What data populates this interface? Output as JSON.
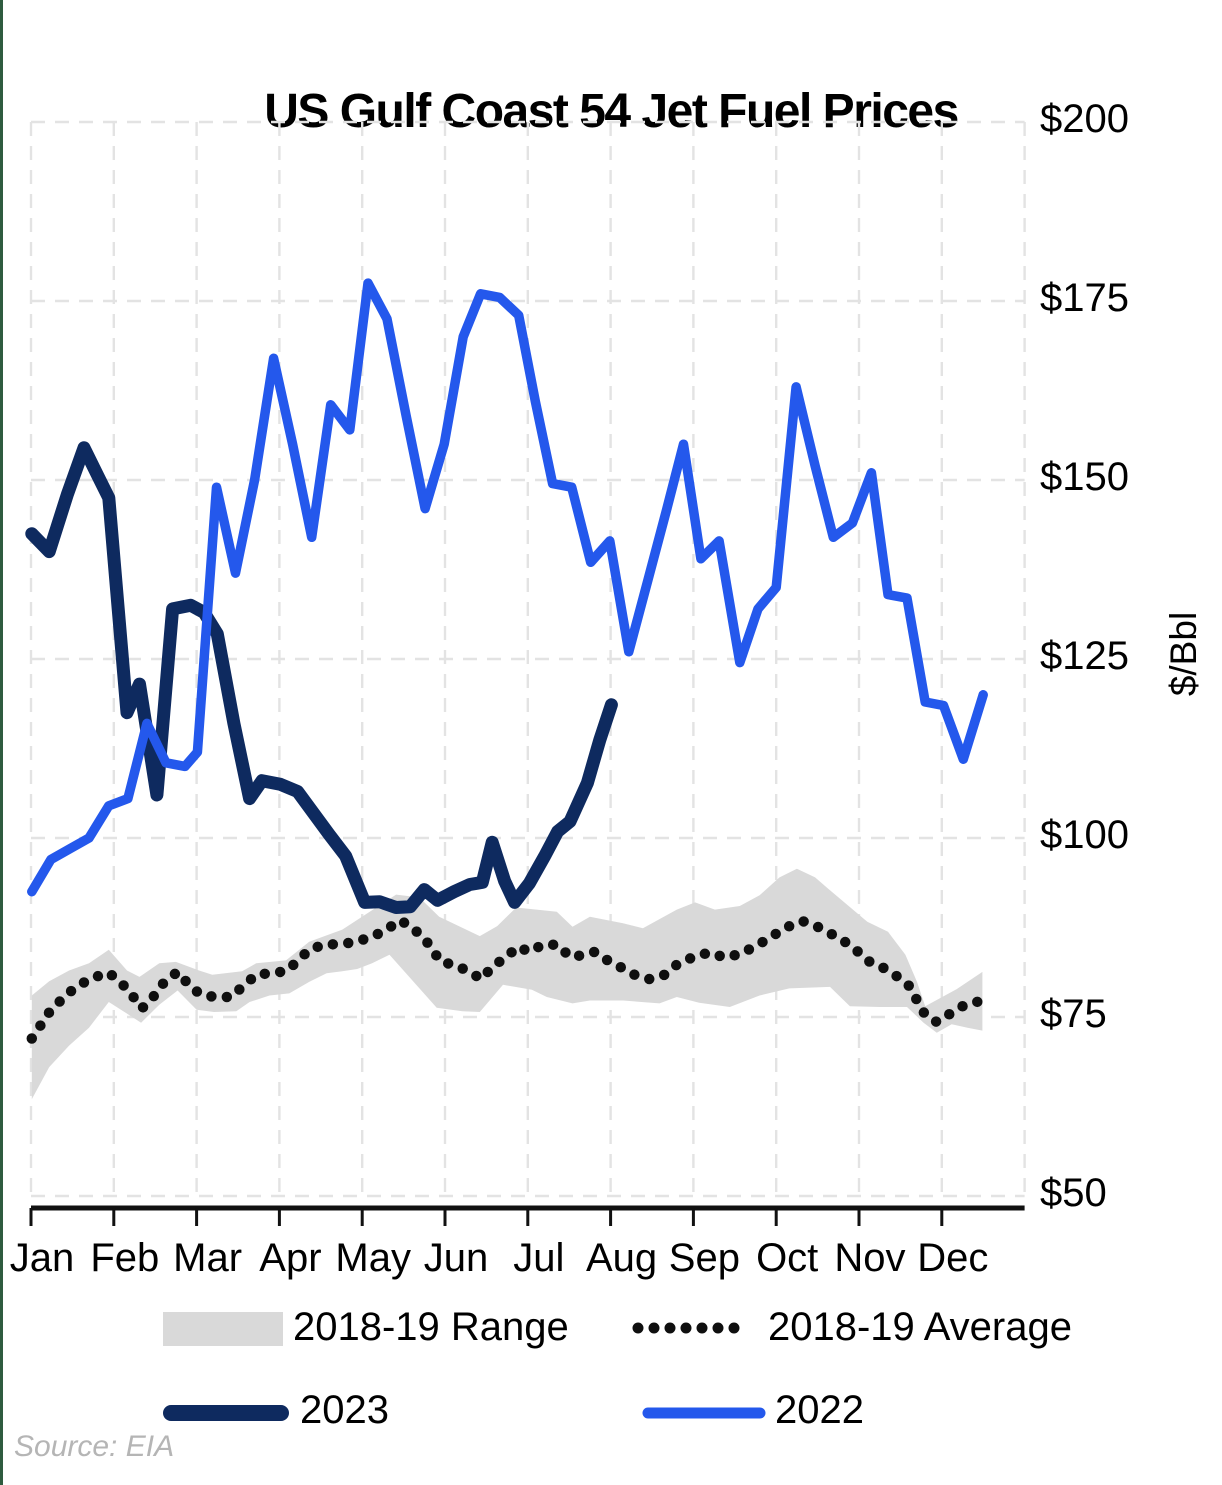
{
  "page": {
    "title": "US Gulf Coast 54 Jet Fuel Prices",
    "source_note": "Source: EIA"
  },
  "colors": {
    "accent_edge": "#2f5b3f",
    "range_fill": "#d9d9d9",
    "average_dot": "#0f0f0f",
    "series_2023": "#0e2a5f",
    "series_2022": "#2458ec",
    "grid": "#e3e3e3",
    "axis": "#111111"
  },
  "legend": {
    "range_label": "2018-19 Range",
    "average_label": "2018-19 Average",
    "y2023_label": "2023",
    "y2022_label": "2022"
  },
  "chart_data": {
    "type": "line",
    "title": "US Gulf Coast 54 Jet Fuel Prices",
    "ylabel": "$/Bbl",
    "ylim": [
      50,
      200
    ],
    "grid": "dashed",
    "x_unit": "months_from_jan1_0_to_12",
    "y_ticks": [
      {
        "label": "$200",
        "value": 200
      },
      {
        "label": "$175",
        "value": 175
      },
      {
        "label": "$150",
        "value": 150
      },
      {
        "label": "$125",
        "value": 125
      },
      {
        "label": "$100",
        "value": 100
      },
      {
        "label": "$75",
        "value": 75
      },
      {
        "label": "$50",
        "value": 50
      }
    ],
    "x_tick_labels": [
      "Jan",
      "Feb",
      "Mar",
      "Apr",
      "May",
      "Jun",
      "Jul",
      "Aug",
      "Sep",
      "Oct",
      "Nov",
      "Dec"
    ],
    "series": [
      {
        "name": "2018-19 Range",
        "type": "band",
        "upper": [
          [
            0.01,
            78
          ],
          [
            0.22,
            80
          ],
          [
            0.46,
            81.5
          ],
          [
            0.7,
            82.5
          ],
          [
            0.94,
            84.4
          ],
          [
            1.16,
            81.5
          ],
          [
            1.31,
            80.6
          ],
          [
            1.55,
            82.5
          ],
          [
            1.75,
            82.7
          ],
          [
            2.03,
            81.5
          ],
          [
            2.19,
            80.9
          ],
          [
            2.55,
            81.4
          ],
          [
            2.72,
            82.5
          ],
          [
            3.08,
            82.9
          ],
          [
            3.36,
            85.5
          ],
          [
            3.76,
            87.2
          ],
          [
            4.41,
            92.1
          ],
          [
            4.69,
            91.7
          ],
          [
            4.93,
            89.0
          ],
          [
            5.42,
            86.3
          ],
          [
            5.63,
            87.7
          ],
          [
            5.86,
            90.3
          ],
          [
            6.35,
            89.7
          ],
          [
            6.54,
            87.6
          ],
          [
            6.75,
            89.0
          ],
          [
            7.15,
            88.1
          ],
          [
            7.39,
            87.4
          ],
          [
            7.8,
            90.0
          ],
          [
            8.02,
            91.0
          ],
          [
            8.26,
            90.0
          ],
          [
            8.56,
            90.5
          ],
          [
            8.8,
            92.0
          ],
          [
            9.04,
            94.5
          ],
          [
            9.25,
            95.7
          ],
          [
            9.47,
            94.5
          ],
          [
            9.65,
            92.7
          ],
          [
            10.1,
            88.3
          ],
          [
            10.35,
            86.9
          ],
          [
            10.56,
            83.7
          ],
          [
            10.7,
            79.9
          ],
          [
            10.8,
            76.5
          ],
          [
            11.18,
            78.9
          ],
          [
            11.49,
            81.3
          ]
        ],
        "lower": [
          [
            0.01,
            63.5
          ],
          [
            0.22,
            68
          ],
          [
            0.46,
            71
          ],
          [
            0.7,
            73.5
          ],
          [
            0.94,
            77.1
          ],
          [
            1.33,
            74.2
          ],
          [
            1.55,
            76.7
          ],
          [
            1.77,
            78.7
          ],
          [
            2.0,
            76.0
          ],
          [
            2.21,
            75.7
          ],
          [
            2.48,
            75.8
          ],
          [
            2.64,
            77.1
          ],
          [
            2.88,
            78.0
          ],
          [
            3.12,
            78.3
          ],
          [
            3.36,
            79.9
          ],
          [
            3.57,
            81.1
          ],
          [
            3.76,
            81.4
          ],
          [
            3.94,
            81.7
          ],
          [
            4.12,
            82.5
          ],
          [
            4.33,
            83.7
          ],
          [
            4.9,
            76.3
          ],
          [
            5.21,
            75.8
          ],
          [
            5.42,
            75.7
          ],
          [
            5.7,
            79.5
          ],
          [
            6.05,
            78.8
          ],
          [
            6.23,
            77.8
          ],
          [
            6.54,
            76.9
          ],
          [
            6.75,
            77.3
          ],
          [
            7.15,
            77.3
          ],
          [
            7.59,
            76.9
          ],
          [
            7.8,
            77.8
          ],
          [
            8.07,
            77.0
          ],
          [
            8.44,
            76.4
          ],
          [
            8.8,
            78.0
          ],
          [
            9.16,
            79.0
          ],
          [
            9.65,
            79.2
          ],
          [
            9.89,
            76.5
          ],
          [
            10.25,
            76.4
          ],
          [
            10.58,
            76.4
          ],
          [
            10.78,
            74.2
          ],
          [
            10.94,
            72.8
          ],
          [
            11.12,
            74.0
          ],
          [
            11.31,
            73.5
          ],
          [
            11.49,
            73.1
          ]
        ]
      },
      {
        "name": "2018-19 Average",
        "type": "dotted-line",
        "points": [
          [
            0.01,
            72
          ],
          [
            0.24,
            76
          ],
          [
            0.47,
            78.5
          ],
          [
            0.7,
            80.3
          ],
          [
            0.94,
            81.2
          ],
          [
            1.16,
            79
          ],
          [
            1.34,
            76.2
          ],
          [
            1.49,
            78
          ],
          [
            1.61,
            79.9
          ],
          [
            1.77,
            81.3
          ],
          [
            1.9,
            79.6
          ],
          [
            2.03,
            78.3
          ],
          [
            2.21,
            77.8
          ],
          [
            2.42,
            77.8
          ],
          [
            2.55,
            79.2
          ],
          [
            2.72,
            80.9
          ],
          [
            2.88,
            81.1
          ],
          [
            3.08,
            81.4
          ],
          [
            3.22,
            82.8
          ],
          [
            3.36,
            84.4
          ],
          [
            3.54,
            85.1
          ],
          [
            3.75,
            85.2
          ],
          [
            3.93,
            85.5
          ],
          [
            4.11,
            86.2
          ],
          [
            4.27,
            87
          ],
          [
            4.45,
            88.5
          ],
          [
            4.57,
            87.8
          ],
          [
            4.75,
            86
          ],
          [
            4.95,
            82.7
          ],
          [
            5.11,
            82.3
          ],
          [
            5.3,
            81.3
          ],
          [
            5.44,
            80.3
          ],
          [
            5.57,
            82
          ],
          [
            5.74,
            83.4
          ],
          [
            5.88,
            84.8
          ],
          [
            6.02,
            84.1
          ],
          [
            6.18,
            85.1
          ],
          [
            6.36,
            85.1
          ],
          [
            6.51,
            83.4
          ],
          [
            6.65,
            83.6
          ],
          [
            6.81,
            84.1
          ],
          [
            6.95,
            83
          ],
          [
            7.13,
            81.9
          ],
          [
            7.29,
            80.9
          ],
          [
            7.47,
            80.3
          ],
          [
            7.65,
            80.9
          ],
          [
            7.8,
            82.3
          ],
          [
            8.02,
            83.5
          ],
          [
            8.2,
            84
          ],
          [
            8.38,
            83.3
          ],
          [
            8.56,
            83.8
          ],
          [
            8.77,
            85
          ],
          [
            8.95,
            86.3
          ],
          [
            9.14,
            87.6
          ],
          [
            9.32,
            88.4
          ],
          [
            9.5,
            87.6
          ],
          [
            9.65,
            86.7
          ],
          [
            9.83,
            85.5
          ],
          [
            9.99,
            84.1
          ],
          [
            10.13,
            82.7
          ],
          [
            10.29,
            81.9
          ],
          [
            10.47,
            80.6
          ],
          [
            10.62,
            79.2
          ],
          [
            10.7,
            77.3
          ],
          [
            10.8,
            75.3
          ],
          [
            10.94,
            74.3
          ],
          [
            11.12,
            75.6
          ],
          [
            11.28,
            76.7
          ],
          [
            11.46,
            77.2
          ]
        ]
      },
      {
        "name": "2023",
        "type": "line",
        "points": [
          [
            0.01,
            142.5
          ],
          [
            0.22,
            140
          ],
          [
            0.44,
            148
          ],
          [
            0.64,
            154.5
          ],
          [
            0.81,
            150.5
          ],
          [
            0.94,
            147.5
          ],
          [
            1.16,
            117.5
          ],
          [
            1.31,
            121.5
          ],
          [
            1.52,
            106
          ],
          [
            1.71,
            132
          ],
          [
            1.93,
            132.5
          ],
          [
            2.09,
            131.5
          ],
          [
            2.25,
            128.5
          ],
          [
            2.45,
            116
          ],
          [
            2.64,
            105.5
          ],
          [
            2.79,
            108
          ],
          [
            3.01,
            107.5
          ],
          [
            3.22,
            106.5
          ],
          [
            3.41,
            103.5
          ],
          [
            3.6,
            100.5
          ],
          [
            3.8,
            97.5
          ],
          [
            4.03,
            91
          ],
          [
            4.21,
            91.1
          ],
          [
            4.41,
            90.3
          ],
          [
            4.58,
            90.4
          ],
          [
            4.75,
            92.8
          ],
          [
            4.91,
            91.3
          ],
          [
            5.11,
            92.5
          ],
          [
            5.3,
            93.5
          ],
          [
            5.45,
            93.8
          ],
          [
            5.57,
            99.4
          ],
          [
            5.72,
            94
          ],
          [
            5.84,
            91
          ],
          [
            6.02,
            93.7
          ],
          [
            6.2,
            97.4
          ],
          [
            6.36,
            100.9
          ],
          [
            6.51,
            102.3
          ],
          [
            6.72,
            107.7
          ],
          [
            6.87,
            113.7
          ],
          [
            7.01,
            118.6
          ]
        ]
      },
      {
        "name": "2022",
        "type": "line",
        "points": [
          [
            0.01,
            92.5
          ],
          [
            0.24,
            97
          ],
          [
            0.47,
            98.5
          ],
          [
            0.7,
            100
          ],
          [
            0.94,
            104.5
          ],
          [
            1.17,
            105.5
          ],
          [
            1.4,
            116
          ],
          [
            1.63,
            110.5
          ],
          [
            1.86,
            110
          ],
          [
            2.01,
            112
          ],
          [
            2.24,
            149
          ],
          [
            2.47,
            137
          ],
          [
            2.7,
            150
          ],
          [
            2.93,
            167
          ],
          [
            3.16,
            155
          ],
          [
            3.39,
            142
          ],
          [
            3.62,
            160.5
          ],
          [
            3.85,
            157
          ],
          [
            4.07,
            177.5
          ],
          [
            4.3,
            172.5
          ],
          [
            4.53,
            159
          ],
          [
            4.76,
            146
          ],
          [
            4.99,
            155
          ],
          [
            5.22,
            170
          ],
          [
            5.43,
            176
          ],
          [
            5.66,
            175.5
          ],
          [
            5.89,
            173
          ],
          [
            6.09,
            161
          ],
          [
            6.3,
            149.5
          ],
          [
            6.53,
            149
          ],
          [
            6.76,
            138.5
          ],
          [
            6.99,
            141.5
          ],
          [
            7.22,
            126
          ],
          [
            7.45,
            136
          ],
          [
            7.68,
            146
          ],
          [
            7.88,
            155
          ],
          [
            8.09,
            139
          ],
          [
            8.31,
            141.5
          ],
          [
            8.56,
            124.5
          ],
          [
            8.78,
            132
          ],
          [
            9.0,
            135
          ],
          [
            9.24,
            163
          ],
          [
            9.47,
            152
          ],
          [
            9.69,
            142
          ],
          [
            9.92,
            144
          ],
          [
            10.15,
            151
          ],
          [
            10.35,
            134
          ],
          [
            10.58,
            133.5
          ],
          [
            10.8,
            119
          ],
          [
            11.02,
            118.5
          ],
          [
            11.26,
            111
          ],
          [
            11.5,
            120
          ]
        ]
      }
    ]
  }
}
